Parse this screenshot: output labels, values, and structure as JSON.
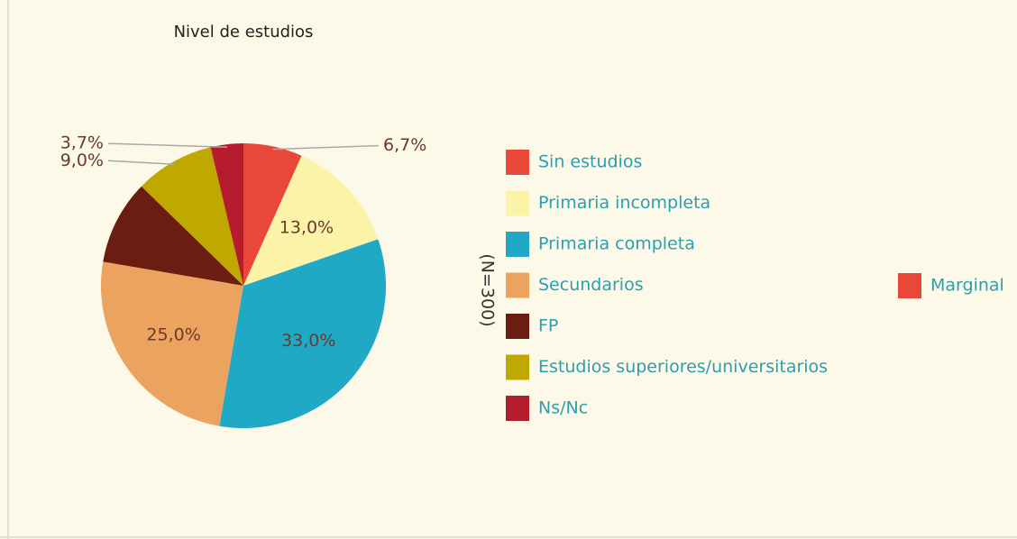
{
  "chart_data": {
    "type": "pie",
    "title": "Nivel de estudios",
    "categories": [
      "Sin estudios",
      "Primaria incompleta",
      "Primaria completa",
      "Secundarios",
      "FP",
      "Estudios superiores/universitarios",
      "Ns/Nc"
    ],
    "values": [
      6.7,
      13.0,
      33.0,
      25.0,
      9.6,
      9.0,
      3.7
    ],
    "value_labels": [
      "6,7%",
      "13,0%",
      "33,0%",
      "25,0%",
      null,
      "9,0%",
      "3,7%"
    ],
    "colors": [
      "#e8473a",
      "#fbf3a8",
      "#1fa9c4",
      "#eba35f",
      "#6b1d12",
      "#bfa800",
      "#b51c2e"
    ],
    "side_label": "(N=300)",
    "extra_legend": {
      "name": "Marginal",
      "color": "#e8473a"
    }
  }
}
